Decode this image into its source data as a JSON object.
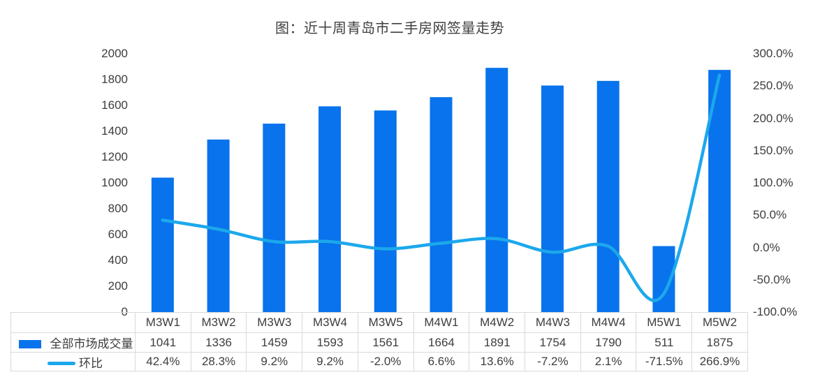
{
  "title": "图：近十周青岛市二手房网签量走势",
  "chart_data": {
    "type": "bar+line combo",
    "title": "图：近十周青岛市二手房网签量走势",
    "categories": [
      "M3W1",
      "M3W2",
      "M3W3",
      "M3W4",
      "M3W5",
      "M4W1",
      "M4W2",
      "M4W3",
      "M4W4",
      "M5W1",
      "M5W2"
    ],
    "series": [
      {
        "name": "全部市场成交量",
        "type": "bar",
        "axis": "left",
        "color": "#0873EC",
        "values": [
          1041,
          1336,
          1459,
          1593,
          1561,
          1664,
          1891,
          1754,
          1790,
          511,
          1875
        ],
        "labels": [
          "1041",
          "1336",
          "1459",
          "1593",
          "1561",
          "1664",
          "1891",
          "1754",
          "1790",
          "511",
          "1875"
        ]
      },
      {
        "name": "环比",
        "type": "line",
        "axis": "right",
        "color": "#1CA8EC",
        "smooth": true,
        "values": [
          42.4,
          28.3,
          9.2,
          9.2,
          -2.0,
          6.6,
          13.6,
          -7.2,
          2.1,
          -71.5,
          266.9
        ],
        "labels": [
          "42.4%",
          "28.3%",
          "9.2%",
          "9.2%",
          "-2.0%",
          "6.6%",
          "13.6%",
          "-7.2%",
          "2.1%",
          "-71.5%",
          "266.9%"
        ]
      }
    ],
    "left_axis": {
      "min": 0,
      "max": 2000,
      "step": 200,
      "ticks": [
        "0",
        "200",
        "400",
        "600",
        "800",
        "1000",
        "1200",
        "1400",
        "1600",
        "1800",
        "2000"
      ]
    },
    "right_axis": {
      "min": -100,
      "max": 300,
      "step": 50,
      "ticks": [
        "-100.0%",
        "-50.0%",
        "0.0%",
        "50.0%",
        "100.0%",
        "150.0%",
        "200.0%",
        "250.0%",
        "300.0%"
      ]
    },
    "legend": {
      "items": [
        "全部市场成交量",
        "环比"
      ],
      "position": "data-table-left"
    },
    "grid": false,
    "border_color": "#d9d9d9"
  }
}
